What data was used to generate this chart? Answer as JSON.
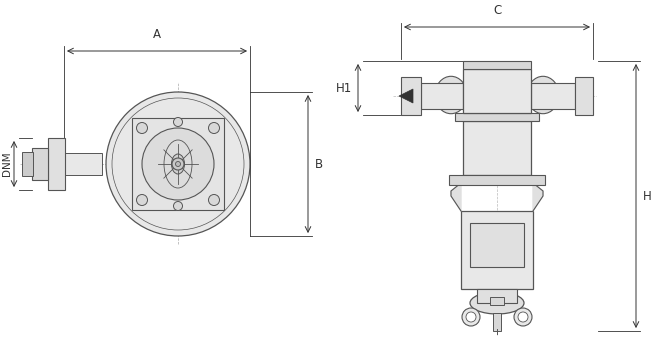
{
  "bg_color": "#ffffff",
  "line_color": "#555555",
  "dim_line_color": "#333333",
  "light_gray": "#aaaaaa",
  "mid_gray": "#888888",
  "dark_gray": "#444444",
  "fig_width": 6.54,
  "fig_height": 3.39,
  "dpi": 100,
  "labels": {
    "DNM": "DNM",
    "A": "A",
    "B": "B",
    "H": "H",
    "H1": "H1",
    "C": "C"
  }
}
